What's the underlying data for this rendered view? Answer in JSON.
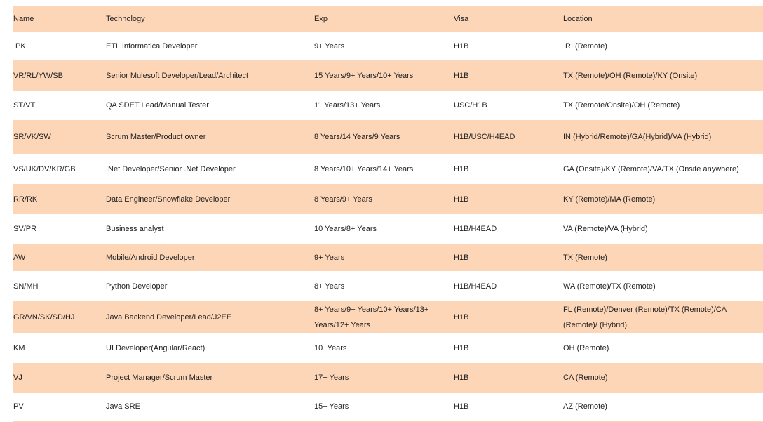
{
  "table": {
    "header": [
      "Name",
      "Technology",
      "Exp",
      "Visa",
      "Location"
    ],
    "rows": [
      [
        "PK",
        "ETL Informatica Developer",
        "9+ Years",
        "H1B",
        "RI (Remote)"
      ],
      [
        "VR/RL/YW/SB",
        "Senior Mulesoft Developer/Lead/Architect",
        "15 Years/9+ Years/10+ Years",
        "H1B",
        "TX (Remote)/OH (Remote)/KY (Onsite)"
      ],
      [
        "ST/VT",
        "QA SDET Lead/Manual Tester",
        "11 Years/13+ Years",
        "USC/H1B",
        "TX (Remote/Onsite)/OH (Remote)"
      ],
      [
        "SR/VK/SW",
        "Scrum Master/Product owner",
        "8 Years/14 Years/9 Years",
        "H1B/USC/H4EAD",
        "IN (Hybrid/Remote)/GA(Hybrid)/VA (Hybrid)"
      ],
      [
        "VS/UK/DV/KR/GB",
        ".Net Developer/Senior .Net Developer",
        "8 Years/10+ Years/14+ Years",
        "H1B",
        "GA (Onsite)/KY (Remote)/VA/TX (Onsite anywhere)"
      ],
      [
        "RR/RK",
        "Data Engineer/Snowflake Developer",
        "8 Years/9+ Years",
        "H1B",
        "KY (Remote)/MA (Remote)"
      ],
      [
        "SV/PR",
        "Business analyst",
        "10 Years/8+ Years",
        "H1B/H4EAD",
        "VA (Remote)/VA (Hybrid)"
      ],
      [
        "AW",
        "Mobile/Android Developer",
        "9+ Years",
        "H1B",
        "TX (Remote)"
      ],
      [
        "SN/MH",
        "Python Developer",
        "8+ Years",
        "H1B/H4EAD",
        "WA (Remote)/TX (Remote)"
      ],
      [
        "GR/VN/SK/SD/HJ",
        "Java Backend Developer/Lead/J2EE",
        "8+ Years/9+ Years/10+ Years/13+ Years/12+ Years",
        "H1B",
        "FL (Remote)/Denver (Remote)/TX (Remote)/CA (Remote)/ (Hybrid)"
      ],
      [
        "KM",
        "UI Developer(Angular/React)",
        "10+Years",
        "H1B",
        "OH (Remote)"
      ],
      [
        "VJ",
        "Project Manager/Scrum Master",
        "17+ Years",
        "H1B",
        "CA (Remote)"
      ],
      [
        "PV",
        "Java SRE",
        "15+ Years",
        "H1B",
        "AZ (Remote)"
      ]
    ]
  }
}
